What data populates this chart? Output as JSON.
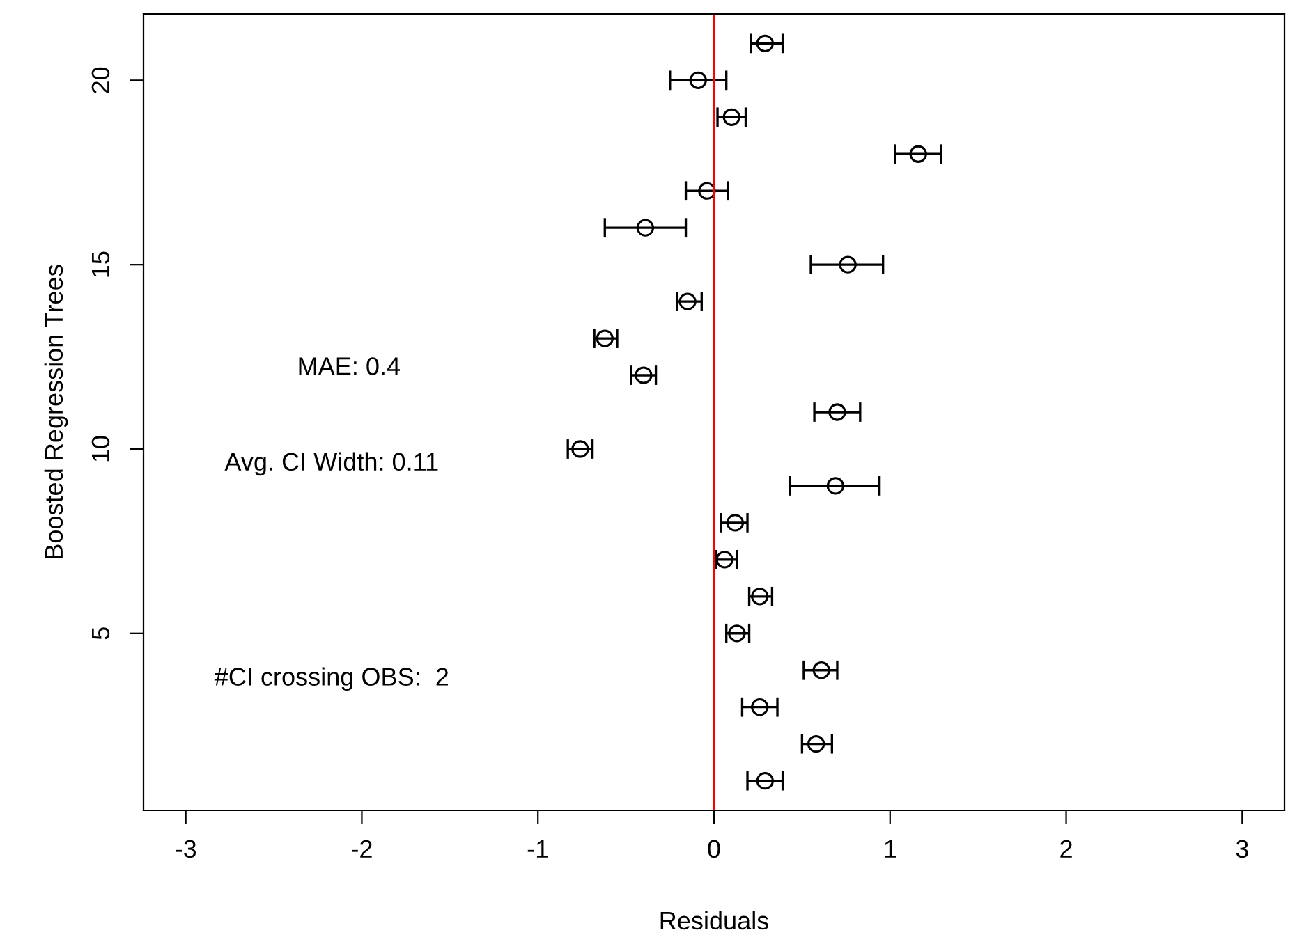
{
  "chart_data": {
    "type": "scatter",
    "xlabel": "Residuals",
    "ylabel": "Boosted Regression Trees",
    "series": [
      {
        "color": "#000000",
        "x": [
          0.29,
          0.58,
          0.26,
          0.61,
          0.13,
          0.26,
          0.06,
          0.12,
          0.69,
          -0.76,
          0.7,
          -0.4,
          -0.62,
          -0.15,
          0.76,
          -0.39,
          -0.04,
          1.16,
          0.1,
          -0.09,
          0.29
        ],
        "values": [
          1,
          2,
          3,
          4,
          5,
          6,
          7,
          8,
          9,
          10,
          11,
          12,
          13,
          14,
          15,
          16,
          17,
          18,
          19,
          20,
          21
        ],
        "xerrors": [
          [
            0.19,
            0.39
          ],
          [
            0.5,
            0.67
          ],
          [
            0.16,
            0.36
          ],
          [
            0.51,
            0.7
          ],
          [
            0.07,
            0.2
          ],
          [
            0.2,
            0.33
          ],
          [
            0.01,
            0.13
          ],
          [
            0.04,
            0.19
          ],
          [
            0.43,
            0.94
          ],
          [
            -0.83,
            -0.69
          ],
          [
            0.57,
            0.83
          ],
          [
            -0.47,
            -0.33
          ],
          [
            -0.68,
            -0.55
          ],
          [
            -0.21,
            -0.07
          ],
          [
            0.55,
            0.96
          ],
          [
            -0.62,
            -0.16
          ],
          [
            -0.16,
            0.08
          ],
          [
            1.03,
            1.29
          ],
          [
            0.02,
            0.18
          ],
          [
            -0.25,
            0.07
          ],
          [
            0.21,
            0.39
          ]
        ]
      }
    ],
    "xlim": [
      -3.24,
      3.24
    ],
    "xticks": [
      {
        "value": -3,
        "label": "-3"
      },
      {
        "value": -2,
        "label": "-2"
      },
      {
        "value": -1,
        "label": "-1"
      },
      0,
      1,
      2,
      3
    ],
    "ylim": [
      0.2,
      21.8
    ],
    "yticks": [
      5,
      10,
      15,
      20
    ],
    "ref_lines": [
      {
        "axis": "x",
        "value": 0,
        "color": "#ff0000"
      }
    ],
    "annotations": [
      "MAE: 0.4",
      "Avg. CI Width: 0.11",
      "#CI crossing OBS:  2"
    ],
    "marker": "circle",
    "grid": false,
    "legend": false
  }
}
